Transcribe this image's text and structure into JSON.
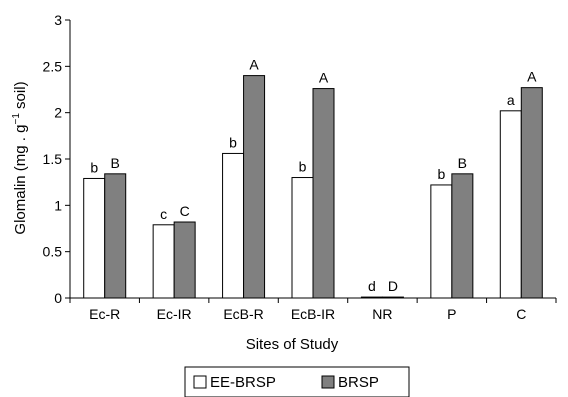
{
  "chart_data": {
    "type": "bar",
    "xlabel": "Sites of Study",
    "ylabel": "Glomalin (mg . g",
    "ylabel_sup": "−1",
    "ylabel_tail": " soil)",
    "ylim": [
      0,
      3
    ],
    "yticks": [
      "0",
      "0.5",
      "1",
      "1.5",
      "2",
      "2.5",
      "3"
    ],
    "ytick_values": [
      0,
      0.5,
      1,
      1.5,
      2,
      2.5,
      3
    ],
    "categories": [
      "Ec-R",
      "Ec-IR",
      "EcB-R",
      "EcB-IR",
      "NR",
      "P",
      "C"
    ],
    "series": [
      {
        "name": "EE-BRSP",
        "color": "#ffffff",
        "values": [
          1.29,
          0.79,
          1.56,
          1.3,
          0.01,
          1.22,
          2.02
        ],
        "labels": [
          "b",
          "c",
          "b",
          "b",
          "d",
          "b",
          "a"
        ]
      },
      {
        "name": "BRSP",
        "color": "#808080",
        "values": [
          1.34,
          0.82,
          2.4,
          2.26,
          0.01,
          1.34,
          2.27
        ],
        "labels": [
          "B",
          "C",
          "A",
          "A",
          "D",
          "B",
          "A"
        ]
      }
    ],
    "legend_position": "bottom-center",
    "grid": false
  }
}
